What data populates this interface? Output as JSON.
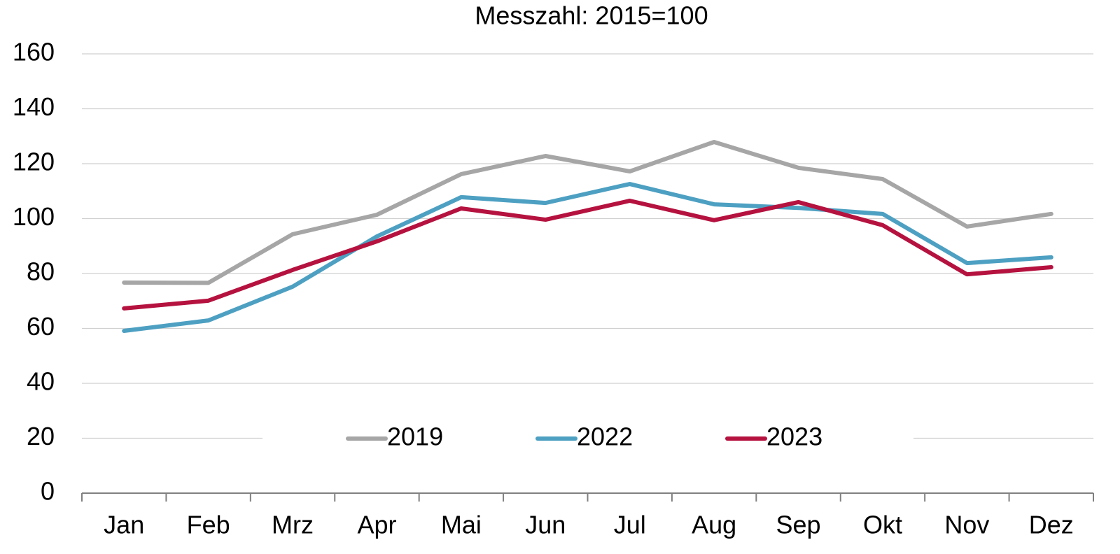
{
  "chart_data": {
    "type": "line",
    "title": "Messzahl: 2015=100",
    "categories": [
      "Jan",
      "Feb",
      "Mrz",
      "Apr",
      "Mai",
      "Jun",
      "Jul",
      "Aug",
      "Sep",
      "Okt",
      "Nov",
      "Dez"
    ],
    "series": [
      {
        "name": "2019",
        "color": "#a6a6a6",
        "values": [
          76.7,
          76.6,
          94.3,
          101.4,
          116.2,
          122.8,
          117.2,
          127.9,
          118.5,
          114.4,
          97.1,
          101.7
        ]
      },
      {
        "name": "2022",
        "color": "#4da0c2",
        "values": [
          59.1,
          62.9,
          75.2,
          93.5,
          107.8,
          105.7,
          112.6,
          105.2,
          103.9,
          101.7,
          83.8,
          85.9
        ]
      },
      {
        "name": "2023",
        "color": "#b5123f",
        "values": [
          67.3,
          70.1,
          81.3,
          91.7,
          103.7,
          99.6,
          106.5,
          99.4,
          106.0,
          97.6,
          79.7,
          82.3
        ]
      }
    ],
    "ylim": [
      0,
      160
    ],
    "yticks": [
      0,
      20,
      40,
      60,
      80,
      100,
      120,
      140,
      160
    ],
    "grid": true,
    "legend": "bottom"
  }
}
